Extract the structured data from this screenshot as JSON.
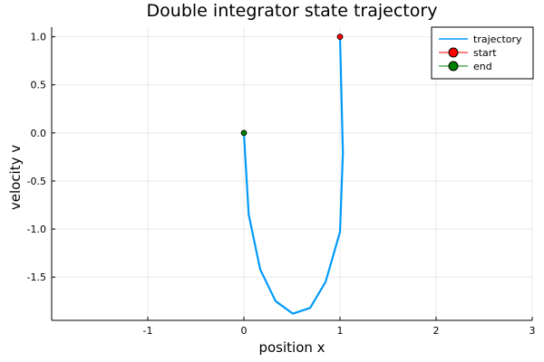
{
  "chart_data": {
    "type": "line",
    "title": "Double integrator state trajectory",
    "xlabel": "position x",
    "ylabel": "velocity v",
    "xlim": [
      -2,
      3
    ],
    "ylim": [
      -1.95,
      1.1
    ],
    "xticks": [
      -1,
      0,
      1,
      2,
      3
    ],
    "yticks": [
      1.0,
      0.5,
      0.0,
      -0.5,
      -1.0,
      -1.5
    ],
    "xtick_labels": [
      "-1",
      "0",
      "1",
      "2",
      "3"
    ],
    "ytick_labels": [
      "1.0",
      "0.5",
      "0.0",
      "-0.5",
      "-1.0",
      "-1.5"
    ],
    "grid": true,
    "legend_position": "top-right",
    "series": [
      {
        "name": "trajectory",
        "color": "#009af9",
        "x": [
          1.0,
          1.03,
          1.0,
          0.85,
          0.69,
          0.51,
          0.33,
          0.17,
          0.05,
          0.0
        ],
        "y": [
          1.0,
          -0.21,
          -1.03,
          -1.55,
          -1.82,
          -1.88,
          -1.75,
          -1.42,
          -0.85,
          0.0
        ]
      },
      {
        "name": "start",
        "color": "#ff0000",
        "marker": "circle",
        "x": [
          1.0
        ],
        "y": [
          1.0
        ]
      },
      {
        "name": "end",
        "color": "#008000",
        "marker": "circle",
        "x": [
          0.0
        ],
        "y": [
          0.0
        ]
      }
    ]
  }
}
